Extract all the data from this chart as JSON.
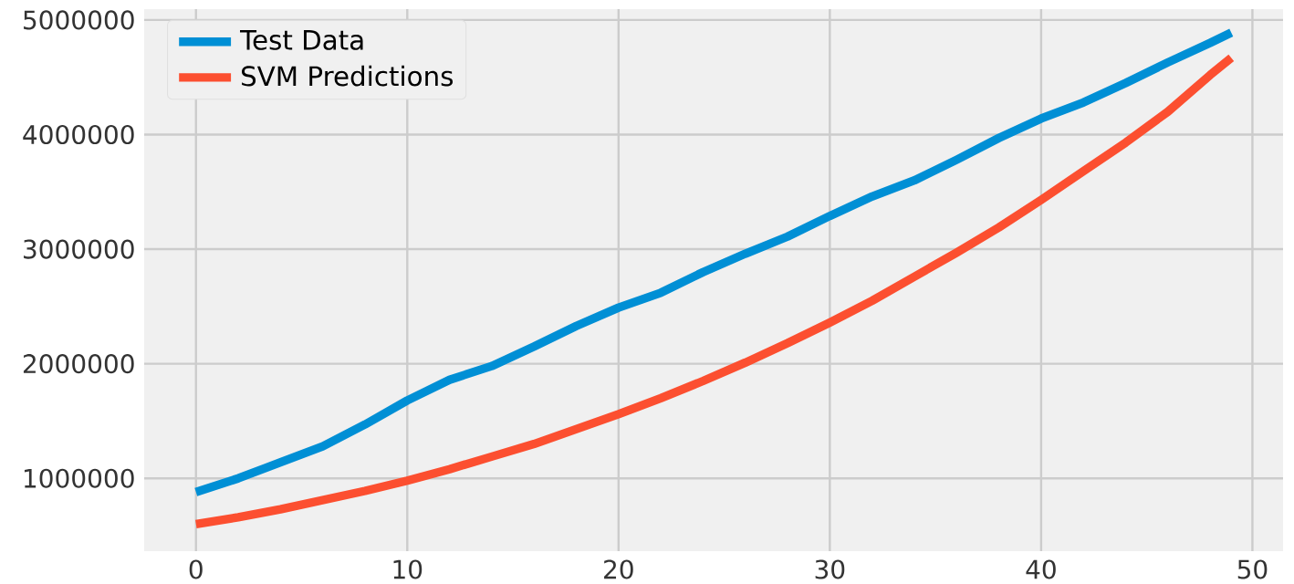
{
  "chart_data": {
    "type": "line",
    "x": [
      0,
      2,
      4,
      6,
      8,
      10,
      12,
      14,
      16,
      18,
      20,
      22,
      24,
      26,
      28,
      30,
      32,
      34,
      36,
      38,
      40,
      42,
      44,
      46,
      48,
      49
    ],
    "series": [
      {
        "name": "Test Data",
        "color": "#008fd5",
        "values": [
          880000,
          1000000,
          1140000,
          1280000,
          1470000,
          1680000,
          1860000,
          1980000,
          2150000,
          2330000,
          2490000,
          2620000,
          2800000,
          2960000,
          3110000,
          3290000,
          3460000,
          3600000,
          3780000,
          3970000,
          4140000,
          4280000,
          4450000,
          4630000,
          4800000,
          4890000
        ]
      },
      {
        "name": "SVM Predictions",
        "color": "#fc4f30",
        "values": [
          600000,
          660000,
          730000,
          810000,
          890000,
          980000,
          1080000,
          1190000,
          1300000,
          1430000,
          1560000,
          1700000,
          1850000,
          2010000,
          2180000,
          2360000,
          2550000,
          2760000,
          2970000,
          3190000,
          3430000,
          3680000,
          3930000,
          4200000,
          4520000,
          4670000
        ]
      }
    ],
    "xlim": [
      -2.45,
      51.45
    ],
    "ylim": [
      365000,
      5095000
    ],
    "xticks": [
      0,
      10,
      20,
      30,
      40,
      50
    ],
    "yticks": [
      1000000,
      2000000,
      3000000,
      4000000,
      5000000
    ],
    "grid": true,
    "legend": "top left",
    "line_style": "solid",
    "marker": "none"
  }
}
